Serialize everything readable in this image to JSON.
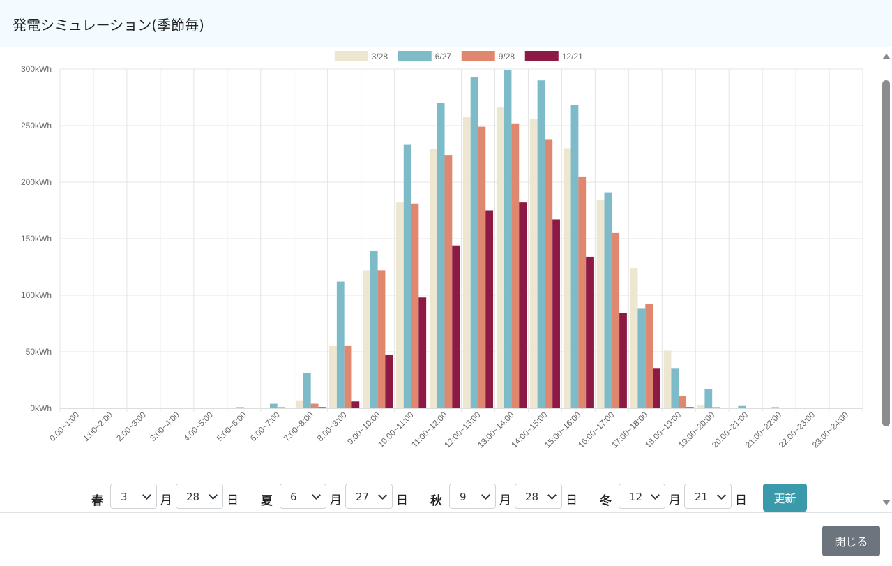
{
  "header": {
    "title": "発電シミュレーション(季節毎)"
  },
  "chart_data": {
    "type": "bar",
    "categories": [
      "0:00~1:00",
      "1:00~2:00",
      "2:00~3:00",
      "3:00~4:00",
      "4:00~5:00",
      "5:00~6:00",
      "6:00~7:00",
      "7:00~8:00",
      "8:00~9:00",
      "9:00~10:00",
      "10:00~11:00",
      "11:00~12:00",
      "12:00~13:00",
      "13:00~14:00",
      "14:00~15:00",
      "15:00~16:00",
      "16:00~17:00",
      "17:00~18:00",
      "18:00~19:00",
      "19:00~20:00",
      "20:00~21:00",
      "21:00~22:00",
      "22:00~23:00",
      "23:00~24:00"
    ],
    "series": [
      {
        "name": "3/28",
        "color": "#ede7d1",
        "values": [
          0,
          0,
          0,
          0,
          0,
          0,
          0,
          7,
          55,
          122,
          182,
          229,
          258,
          266,
          256,
          230,
          184,
          124,
          51,
          3,
          0,
          0,
          0,
          0
        ]
      },
      {
        "name": "6/27",
        "color": "#7ebbc9",
        "values": [
          0,
          0,
          0,
          0,
          0,
          1,
          4,
          31,
          112,
          139,
          233,
          270,
          293,
          299,
          290,
          268,
          191,
          88,
          35,
          17,
          2,
          1,
          0,
          0
        ]
      },
      {
        "name": "9/28",
        "color": "#e0876f",
        "values": [
          0,
          0,
          0,
          0,
          0,
          0,
          1,
          4,
          55,
          122,
          181,
          224,
          249,
          252,
          238,
          205,
          155,
          92,
          11,
          1,
          0,
          0,
          0,
          0
        ]
      },
      {
        "name": "12/21",
        "color": "#8c1a45",
        "values": [
          0,
          0,
          0,
          0,
          0,
          0,
          0,
          1,
          6,
          47,
          98,
          144,
          175,
          182,
          167,
          134,
          84,
          35,
          1,
          0,
          0,
          0,
          0,
          0
        ]
      }
    ],
    "ylim": [
      0,
      300
    ],
    "yticks": [
      0,
      50,
      100,
      150,
      200,
      250,
      300
    ],
    "ytick_suffix": "kWh",
    "legend": "top-center",
    "grid": true
  },
  "controls": {
    "spring": {
      "label": "春",
      "month": "3",
      "day": "28"
    },
    "summer": {
      "label": "夏",
      "month": "6",
      "day": "27"
    },
    "autumn": {
      "label": "秋",
      "month": "9",
      "day": "28"
    },
    "winter": {
      "label": "冬",
      "month": "12",
      "day": "21"
    },
    "month_unit": "月",
    "day_unit": "日",
    "update_label": "更新"
  },
  "footer": {
    "close_label": "閉じる"
  }
}
